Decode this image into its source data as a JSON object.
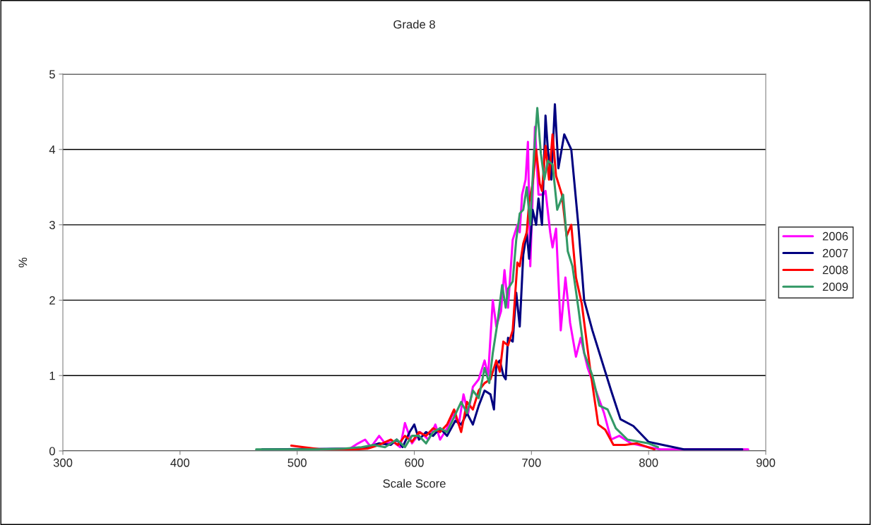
{
  "chart_data": {
    "type": "line",
    "title": "Grade 8",
    "xlabel": "Scale Score",
    "ylabel": "%",
    "xlim": [
      300,
      900
    ],
    "xticks": [
      300,
      400,
      500,
      600,
      700,
      800,
      900
    ],
    "ylim": [
      0,
      5
    ],
    "yticks": [
      0,
      1,
      2,
      3,
      4,
      5
    ],
    "grid": "y",
    "legend": "right",
    "marker": "none",
    "line_style": "solid",
    "series": [
      {
        "name": "2006",
        "color": "#ff00ff",
        "x": [
          520,
          545,
          552,
          558,
          563,
          570,
          575,
          582,
          588,
          592,
          598,
          605,
          612,
          618,
          622,
          628,
          633,
          638,
          642,
          646,
          650,
          655,
          660,
          663,
          667,
          670,
          674,
          677,
          680,
          684,
          688,
          690,
          692,
          695,
          697,
          699,
          703,
          706,
          710,
          712,
          716,
          718,
          721,
          725,
          729,
          733,
          738,
          742,
          748,
          755,
          762,
          768,
          775,
          785,
          800,
          810,
          885
        ],
        "values": [
          0.02,
          0.03,
          0.1,
          0.15,
          0.05,
          0.2,
          0.1,
          0.12,
          0.05,
          0.37,
          0.1,
          0.25,
          0.15,
          0.35,
          0.15,
          0.3,
          0.5,
          0.35,
          0.75,
          0.5,
          0.85,
          0.95,
          1.2,
          1.0,
          2.0,
          1.65,
          1.85,
          2.4,
          1.9,
          2.8,
          3.0,
          2.9,
          3.4,
          3.6,
          4.1,
          2.45,
          4.3,
          3.4,
          3.4,
          3.45,
          2.9,
          2.7,
          2.95,
          1.6,
          2.3,
          1.7,
          1.25,
          1.5,
          1.1,
          0.8,
          0.5,
          0.15,
          0.2,
          0.1,
          0.05,
          0.02,
          0.02
        ]
      },
      {
        "name": "2007",
        "color": "#000080",
        "x": [
          470,
          550,
          560,
          570,
          580,
          585,
          590,
          596,
          600,
          604,
          610,
          616,
          622,
          628,
          635,
          640,
          645,
          650,
          655,
          660,
          665,
          668,
          670,
          673,
          676,
          678,
          680,
          684,
          687,
          690,
          693,
          696,
          698,
          701,
          704,
          706,
          709,
          712,
          714,
          717,
          720,
          723,
          728,
          734,
          740,
          745,
          752,
          760,
          768,
          776,
          787,
          800,
          830,
          880
        ],
        "values": [
          0.02,
          0.03,
          0.05,
          0.1,
          0.08,
          0.15,
          0.05,
          0.25,
          0.35,
          0.15,
          0.25,
          0.2,
          0.3,
          0.2,
          0.4,
          0.35,
          0.5,
          0.35,
          0.6,
          0.8,
          0.75,
          0.55,
          1.15,
          1.2,
          1.0,
          0.95,
          1.5,
          1.45,
          2.1,
          1.65,
          2.6,
          2.9,
          2.55,
          3.2,
          3.0,
          3.35,
          3.0,
          4.45,
          4.0,
          3.6,
          4.6,
          3.75,
          4.2,
          4.0,
          3.0,
          2.0,
          1.6,
          1.2,
          0.8,
          0.42,
          0.33,
          0.12,
          0.02,
          0.02
        ]
      },
      {
        "name": "2008",
        "color": "#ff0000",
        "x": [
          495,
          520,
          550,
          560,
          570,
          580,
          586,
          592,
          598,
          604,
          610,
          616,
          622,
          628,
          634,
          640,
          645,
          650,
          655,
          660,
          665,
          670,
          673,
          676,
          680,
          684,
          688,
          690,
          693,
          696,
          698,
          701,
          704,
          707,
          709,
          712,
          715,
          718,
          721,
          726,
          730,
          734,
          738,
          743,
          750,
          757,
          763,
          770,
          780,
          790,
          805
        ],
        "values": [
          0.07,
          0.02,
          0.02,
          0.03,
          0.08,
          0.15,
          0.08,
          0.2,
          0.12,
          0.25,
          0.2,
          0.3,
          0.25,
          0.35,
          0.55,
          0.25,
          0.65,
          0.55,
          0.8,
          0.9,
          0.95,
          1.2,
          1.05,
          1.45,
          1.4,
          1.6,
          2.5,
          2.45,
          2.75,
          2.9,
          3.3,
          3.55,
          4.0,
          3.55,
          3.45,
          4.05,
          3.6,
          4.2,
          3.65,
          3.4,
          2.85,
          3.0,
          2.3,
          1.95,
          1.1,
          0.35,
          0.28,
          0.08,
          0.08,
          0.1,
          0.02
        ]
      },
      {
        "name": "2009",
        "color": "#339966",
        "x": [
          465,
          520,
          540,
          555,
          565,
          575,
          585,
          592,
          598,
          604,
          610,
          616,
          622,
          628,
          634,
          640,
          645,
          650,
          655,
          660,
          664,
          667,
          671,
          675,
          678,
          680,
          684,
          687,
          690,
          693,
          696,
          699,
          702,
          705,
          708,
          711,
          714,
          718,
          722,
          727,
          731,
          735,
          740,
          745,
          752,
          758,
          765,
          772,
          782,
          800,
          808
        ],
        "values": [
          0.02,
          0.02,
          0.03,
          0.05,
          0.08,
          0.05,
          0.15,
          0.05,
          0.2,
          0.2,
          0.1,
          0.25,
          0.3,
          0.25,
          0.45,
          0.65,
          0.5,
          0.8,
          0.7,
          1.1,
          0.9,
          1.3,
          1.7,
          2.2,
          1.9,
          2.15,
          2.25,
          2.8,
          3.15,
          3.2,
          3.5,
          3.0,
          3.9,
          4.55,
          3.95,
          3.6,
          3.85,
          3.8,
          3.2,
          3.4,
          2.65,
          2.45,
          1.9,
          1.3,
          1.0,
          0.6,
          0.55,
          0.3,
          0.15,
          0.1,
          0.05
        ]
      }
    ]
  }
}
